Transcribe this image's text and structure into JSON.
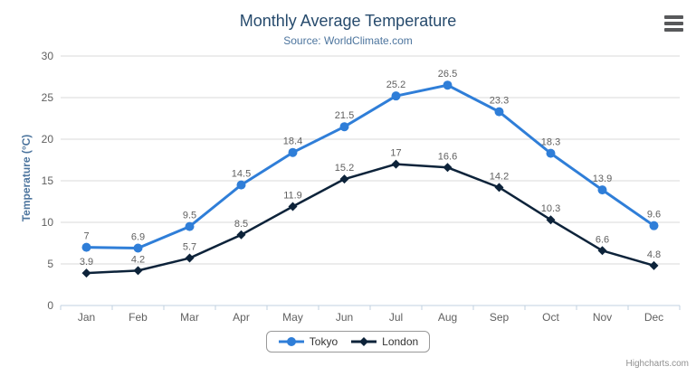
{
  "chart_data": {
    "type": "line",
    "title": "Monthly Average Temperature",
    "subtitle": "Source: WorldClimate.com",
    "categories": [
      "Jan",
      "Feb",
      "Mar",
      "Apr",
      "May",
      "Jun",
      "Jul",
      "Aug",
      "Sep",
      "Oct",
      "Nov",
      "Dec"
    ],
    "series": [
      {
        "name": "Tokyo",
        "color": "#2f7ed8",
        "marker": "circle",
        "values": [
          7,
          6.9,
          9.5,
          14.5,
          18.4,
          21.5,
          25.2,
          26.5,
          23.3,
          18.3,
          13.9,
          9.6
        ]
      },
      {
        "name": "London",
        "color": "#0d233a",
        "marker": "diamond",
        "values": [
          3.9,
          4.2,
          5.7,
          8.5,
          11.9,
          15.2,
          17,
          16.6,
          14.2,
          10.3,
          6.6,
          4.8
        ]
      }
    ],
    "xlabel": "",
    "ylabel": "Temperature (°C)",
    "ylim": [
      0,
      30
    ],
    "yticks": [
      0,
      5,
      10,
      15,
      20,
      25,
      30
    ],
    "grid": true,
    "data_labels": true,
    "legend_position": "bottom"
  },
  "credits": "Highcharts.com",
  "icons": {
    "menu": "hamburger-menu-icon"
  },
  "colors": {
    "background": "#ffffff",
    "title": "#274b6d",
    "subtitle": "#4d759e",
    "axis_title": "#4d759e",
    "axis_line": "#c0d0e0",
    "gridline": "#d8d8d8",
    "tick_label": "#606060",
    "data_label": "#606060",
    "legend_text": "#333333",
    "legend_border": "#999999",
    "credits": "#909090",
    "menu_icon": "#58595b"
  }
}
